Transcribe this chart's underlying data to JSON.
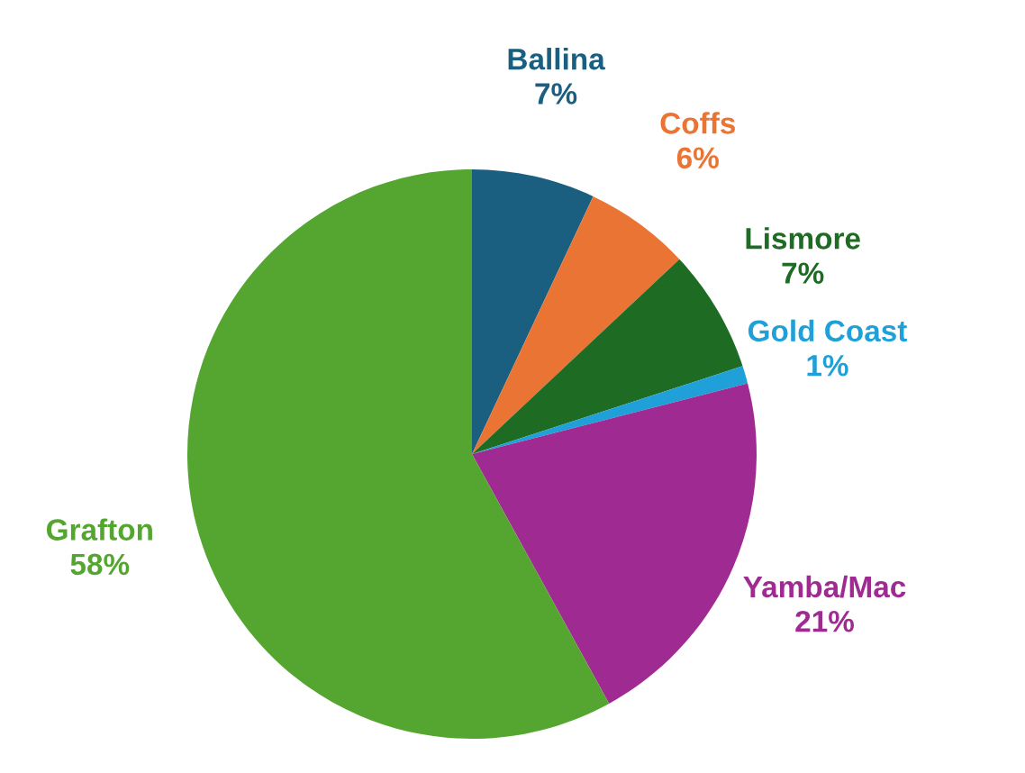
{
  "chart_data": {
    "type": "pie",
    "categories": [
      "Ballina",
      "Coffs",
      "Lismore",
      "Gold Coast",
      "Yamba/Mac",
      "Grafton"
    ],
    "values": [
      7,
      6,
      7,
      1,
      21,
      58
    ],
    "colors": [
      "#1a5e80",
      "#ea7434",
      "#1e6b24",
      "#20a0d8",
      "#9e2a92",
      "#55a631"
    ],
    "value_labels": [
      "7%",
      "6%",
      "7%",
      "1%",
      "21%",
      "58%"
    ],
    "legend": false
  }
}
